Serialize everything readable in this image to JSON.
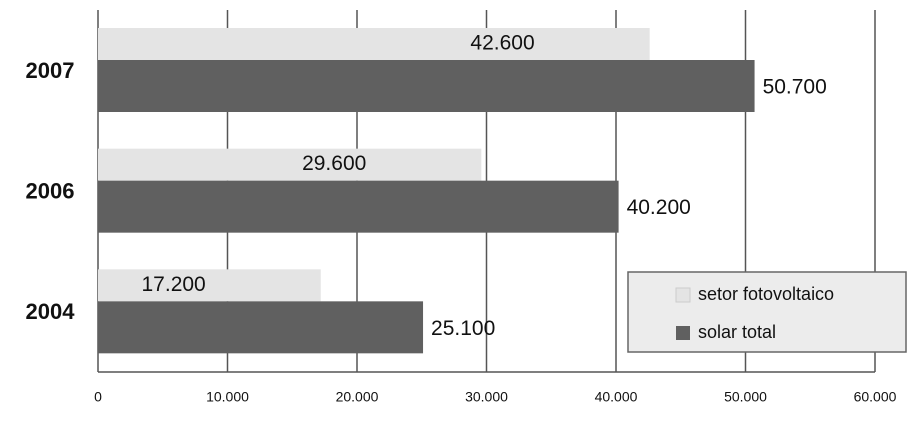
{
  "chart_data": {
    "type": "hbar",
    "categories": [
      "2007",
      "2006",
      "2004"
    ],
    "series": [
      {
        "name": "setor fotovoltaico",
        "color": "#e4e4e4",
        "values": [
          42600,
          29600,
          17200
        ],
        "value_labels": [
          "42.600",
          "29.600",
          "17.200"
        ]
      },
      {
        "name": "solar total",
        "color": "#606060",
        "values": [
          50700,
          40200,
          25100
        ],
        "value_labels": [
          "50.700",
          "40.200",
          "25.100"
        ]
      }
    ],
    "xlim": [
      0,
      60000
    ],
    "xticks": [
      0,
      {
        "value": 10000,
        "label": "10.000"
      },
      {
        "value": 20000,
        "label": "20.000"
      },
      {
        "value": 30000,
        "label": "30.000"
      },
      {
        "value": 40000,
        "label": "40.000"
      },
      {
        "value": 50000,
        "label": "50.000"
      },
      {
        "value": 60000,
        "label": "60.000"
      }
    ],
    "grid": true,
    "legend": "lower-right"
  }
}
